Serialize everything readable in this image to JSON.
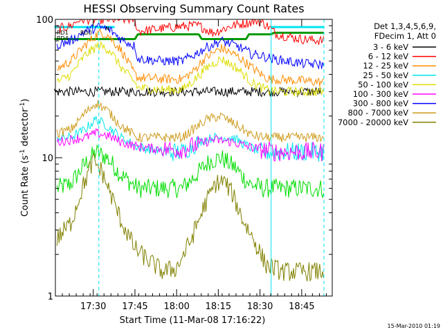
{
  "chart_data": {
    "type": "line",
    "title": "HESSI Observing Summary Count Rates",
    "xlabel": "Start Time (11-Mar-08 17:16:22)",
    "ylabel_main": "Count Rate (s",
    "ylabel_sup1": "-1",
    "ylabel_mid": " detector",
    "ylabel_sup2": "-1",
    "ylabel_end": ")",
    "yscale": "log",
    "xlim": [
      "17:16:22",
      "18:56:00"
    ],
    "ylim": [
      1,
      100
    ],
    "x_ticks": [
      "17:30",
      "17:45",
      "18:00",
      "18:15",
      "18:30",
      "18:45"
    ],
    "y_ticks": [
      "1",
      "10",
      "100"
    ],
    "footer": "15-Mar-2010 01:19",
    "legend_header": [
      "Det 1,3,4,5,6,9,",
      "FDecim 1, Att 0"
    ],
    "legend_position": "right",
    "series": [
      {
        "name": "3 - 6 keV",
        "color": "#000000",
        "points": [
          [
            "17:16",
            30
          ],
          [
            "17:31",
            30
          ],
          [
            "17:45",
            30
          ],
          [
            "18:02",
            30
          ],
          [
            "18:11",
            30
          ],
          [
            "18:25",
            30
          ],
          [
            "18:35",
            30
          ],
          [
            "18:52",
            30
          ]
        ]
      },
      {
        "name": "6 - 12 keV",
        "color": "#ff0000",
        "points": [
          [
            "17:17",
            85
          ],
          [
            "17:22",
            90
          ],
          [
            "17:25",
            100
          ],
          [
            "17:30",
            100
          ],
          [
            "17:32",
            100
          ],
          [
            "17:40",
            100
          ],
          [
            "17:45",
            100
          ],
          [
            "17:46",
            82
          ],
          [
            "17:55",
            86
          ],
          [
            "18:05",
            90
          ],
          [
            "18:08",
            90
          ],
          [
            "18:13",
            80
          ],
          [
            "18:20",
            90
          ],
          [
            "18:26",
            95
          ],
          [
            "18:29",
            98
          ],
          [
            "18:32",
            92
          ],
          [
            "18:36",
            78
          ],
          [
            "18:45",
            72
          ],
          [
            "18:53",
            70
          ]
        ]
      },
      {
        "name": "12 - 25 keV",
        "color": "#ff8c00",
        "points": [
          [
            "17:17",
            44
          ],
          [
            "17:22",
            50
          ],
          [
            "17:27",
            65
          ],
          [
            "17:32",
            80
          ],
          [
            "17:35",
            78
          ],
          [
            "17:40",
            60
          ],
          [
            "17:45",
            40
          ],
          [
            "17:46",
            38
          ],
          [
            "17:55",
            37
          ],
          [
            "18:02",
            37
          ],
          [
            "18:06",
            42
          ],
          [
            "18:10",
            52
          ],
          [
            "18:16",
            62
          ],
          [
            "18:22",
            54
          ],
          [
            "18:27",
            45
          ],
          [
            "18:32",
            38
          ],
          [
            "18:34",
            37
          ],
          [
            "18:45",
            36
          ],
          [
            "18:53",
            35
          ]
        ]
      },
      {
        "name": "25 - 50 keV",
        "color": "#00e5ee",
        "points": [
          [
            "17:17",
            14
          ],
          [
            "17:22",
            14
          ],
          [
            "17:27",
            16
          ],
          [
            "17:31",
            19
          ],
          [
            "17:35",
            17
          ],
          [
            "17:40",
            14
          ],
          [
            "17:46",
            12
          ],
          [
            "17:55",
            11
          ],
          [
            "18:02",
            11
          ],
          [
            "18:08",
            13
          ],
          [
            "18:13",
            14
          ],
          [
            "18:20",
            14
          ],
          [
            "18:26",
            12
          ],
          [
            "18:30",
            11
          ],
          [
            "18:36",
            11
          ],
          [
            "18:45",
            11
          ],
          [
            "18:53",
            11
          ]
        ]
      },
      {
        "name": "50 - 100 keV",
        "color": "#dddd00",
        "points": [
          [
            "17:17",
            35
          ],
          [
            "17:22",
            40
          ],
          [
            "17:27",
            55
          ],
          [
            "17:32",
            65
          ],
          [
            "17:36",
            60
          ],
          [
            "17:40",
            45
          ],
          [
            "17:45",
            35
          ],
          [
            "17:46",
            32
          ],
          [
            "17:55",
            31
          ],
          [
            "18:02",
            31
          ],
          [
            "18:06",
            36
          ],
          [
            "18:11",
            45
          ],
          [
            "18:16",
            52
          ],
          [
            "18:22",
            44
          ],
          [
            "18:27",
            35
          ],
          [
            "18:32",
            31
          ],
          [
            "18:36",
            30
          ],
          [
            "18:45",
            30
          ],
          [
            "18:53",
            30
          ]
        ]
      },
      {
        "name": "100 - 300 keV",
        "color": "#ff00ff",
        "points": [
          [
            "17:17",
            13
          ],
          [
            "17:22",
            13.5
          ],
          [
            "17:27",
            14
          ],
          [
            "17:31",
            15
          ],
          [
            "17:35",
            14.5
          ],
          [
            "17:40",
            13
          ],
          [
            "17:46",
            12
          ],
          [
            "17:55",
            11.5
          ],
          [
            "18:02",
            11.5
          ],
          [
            "18:08",
            12.5
          ],
          [
            "18:13",
            13.5
          ],
          [
            "18:20",
            13
          ],
          [
            "18:26",
            12
          ],
          [
            "18:30",
            11.5
          ],
          [
            "18:36",
            11
          ],
          [
            "18:45",
            11
          ],
          [
            "18:53",
            11
          ]
        ]
      },
      {
        "name": "300 - 800 keV",
        "color": "#0000ff",
        "points": [
          [
            "17:17",
            65
          ],
          [
            "17:22",
            70
          ],
          [
            "17:27",
            82
          ],
          [
            "17:32",
            88
          ],
          [
            "17:36",
            84
          ],
          [
            "17:40",
            72
          ],
          [
            "17:45",
            64
          ],
          [
            "17:46",
            52
          ],
          [
            "17:55",
            50
          ],
          [
            "18:02",
            50
          ],
          [
            "18:06",
            55
          ],
          [
            "18:11",
            63
          ],
          [
            "18:16",
            70
          ],
          [
            "18:22",
            64
          ],
          [
            "18:27",
            56
          ],
          [
            "18:30",
            55
          ],
          [
            "18:34",
            52
          ],
          [
            "18:45",
            48
          ],
          [
            "18:53",
            47
          ]
        ]
      },
      {
        "name": "800 - 7000 keV",
        "color": "#cd9b1d",
        "points": [
          [
            "17:17",
            15
          ],
          [
            "17:22",
            16
          ],
          [
            "17:27",
            21
          ],
          [
            "17:31",
            25
          ],
          [
            "17:35",
            22
          ],
          [
            "17:40",
            17
          ],
          [
            "17:46",
            14
          ],
          [
            "17:55",
            14
          ],
          [
            "18:02",
            14
          ],
          [
            "18:06",
            16
          ],
          [
            "18:11",
            19
          ],
          [
            "18:16",
            20
          ],
          [
            "18:22",
            17
          ],
          [
            "18:27",
            14.5
          ],
          [
            "18:32",
            14
          ],
          [
            "18:40",
            14
          ],
          [
            "18:53",
            14
          ]
        ]
      },
      {
        "name": "7000 - 20000 keV",
        "color": "#808000",
        "points": [
          [
            "17:17",
            2.6
          ],
          [
            "17:22",
            3.4
          ],
          [
            "17:26",
            6
          ],
          [
            "17:30",
            9.5
          ],
          [
            "17:33",
            8
          ],
          [
            "17:37",
            5
          ],
          [
            "17:40",
            3.5
          ],
          [
            "17:45",
            2.2
          ],
          [
            "17:50",
            1.8
          ],
          [
            "17:55",
            1.5
          ],
          [
            "18:00",
            1.6
          ],
          [
            "18:05",
            2.5
          ],
          [
            "18:10",
            4.5
          ],
          [
            "18:14",
            6.5
          ],
          [
            "18:17",
            6.8
          ],
          [
            "18:20",
            5.5
          ],
          [
            "18:24",
            3.5
          ],
          [
            "18:28",
            2.5
          ],
          [
            "18:32",
            1.7
          ],
          [
            "18:38",
            1.5
          ],
          [
            "18:45",
            1.5
          ],
          [
            "18:53",
            1.5
          ]
        ]
      }
    ],
    "extra_traces": [
      {
        "name": "green-high",
        "color": "#009900",
        "points": [
          [
            "17:16",
            72
          ],
          [
            "17:30",
            72
          ],
          [
            "17:45",
            72
          ],
          [
            "17:46",
            78
          ],
          [
            "18:08",
            78
          ],
          [
            "18:09",
            72
          ],
          [
            "18:25",
            72
          ],
          [
            "18:26",
            78
          ],
          [
            "18:34",
            78
          ],
          [
            "18:35",
            80
          ],
          [
            "18:53",
            80
          ]
        ]
      },
      {
        "name": "green-low",
        "color": "#00dd00",
        "points": [
          [
            "17:17",
            6
          ],
          [
            "17:22",
            6.5
          ],
          [
            "17:27",
            9
          ],
          [
            "17:31",
            11
          ],
          [
            "17:35",
            10
          ],
          [
            "17:40",
            7.5
          ],
          [
            "17:46",
            6
          ],
          [
            "17:55",
            6
          ],
          [
            "18:02",
            6
          ],
          [
            "18:07",
            7.5
          ],
          [
            "18:12",
            9.5
          ],
          [
            "18:16",
            10
          ],
          [
            "18:21",
            8.5
          ],
          [
            "18:26",
            6.5
          ],
          [
            "18:31",
            6
          ],
          [
            "18:40",
            6
          ],
          [
            "18:53",
            6
          ]
        ]
      },
      {
        "name": "cyan-flag",
        "color": "#00e5ee",
        "points": [
          [
            "17:16",
            88
          ],
          [
            "17:38",
            88
          ]
        ]
      },
      {
        "name": "cyan-flag-2",
        "color": "#00e5ee",
        "points": [
          [
            "18:34",
            88
          ],
          [
            "18:53",
            88
          ]
        ]
      }
    ],
    "vertical_markers": [
      {
        "time": "17:32",
        "style": "dashed",
        "color": "#00e5ee"
      },
      {
        "time": "18:34",
        "style": "solid",
        "color": "#00e5ee"
      },
      {
        "time": "18:53",
        "style": "dashed",
        "color": "#00e5ee"
      }
    ],
    "annotations": [
      "RD1",
      "RD4",
      "RD0",
      "N"
    ]
  }
}
